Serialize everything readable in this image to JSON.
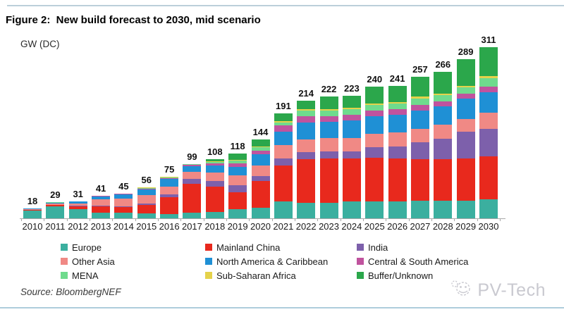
{
  "header": {
    "title": "Figure 2:  New build forecast to 2030, mid scenario"
  },
  "chart": {
    "unit_label": "GW (DC)"
  },
  "chart_data": {
    "type": "bar",
    "stacked": true,
    "title": "New build forecast to 2030, mid scenario",
    "ylabel": "GW (DC)",
    "xlabel": "",
    "grid": false,
    "legend_position": "bottom",
    "ylim": [
      0,
      320
    ],
    "categories": [
      2010,
      2011,
      2012,
      2013,
      2014,
      2015,
      2016,
      2017,
      2018,
      2019,
      2020,
      2021,
      2022,
      2023,
      2024,
      2025,
      2026,
      2027,
      2028,
      2029,
      2030
    ],
    "totals": [
      18,
      29,
      31,
      41,
      45,
      56,
      75,
      99,
      108,
      118,
      144,
      191,
      214,
      222,
      223,
      240,
      241,
      257,
      266,
      289,
      311
    ],
    "series": [
      {
        "key": "europe",
        "name": "Europe",
        "color": "#3BAF9F",
        "values": [
          14,
          21.5,
          17,
          10.5,
          10,
          9,
          7.5,
          9.5,
          12,
          16.5,
          19.5,
          30,
          28,
          28,
          30,
          30,
          31,
          32,
          32,
          32,
          34
        ]
      },
      {
        "key": "mainland-china",
        "name": "Mainland China",
        "color": "#E8291D",
        "values": [
          1,
          2.5,
          5,
          11.5,
          11,
          15.5,
          31,
          53,
          45,
          31,
          48,
          66,
          79,
          81,
          79,
          80,
          78,
          76,
          75,
          77,
          79
        ]
      },
      {
        "key": "india",
        "name": "India",
        "color": "#7D60AB",
        "values": [
          0.2,
          0.5,
          1,
          1,
          1,
          2.5,
          4.5,
          9.5,
          10.5,
          12,
          9,
          13,
          13,
          13,
          13,
          19,
          22,
          30,
          38,
          48,
          50
        ]
      },
      {
        "key": "other-asia",
        "name": "Other Asia",
        "color": "#F08985",
        "values": [
          1.3,
          2,
          3.5,
          11,
          14,
          15.5,
          15,
          12,
          15,
          18.5,
          19.5,
          23.5,
          23.5,
          23.5,
          23.5,
          24,
          25,
          25,
          25,
          24,
          29
        ]
      },
      {
        "key": "north-america-caribbean",
        "name": "North America & Caribbean",
        "color": "#1F90D5",
        "values": [
          1.2,
          2,
          4,
          6,
          7.5,
          10,
          14,
          11,
          13,
          15,
          20,
          25.5,
          30,
          30,
          32,
          32,
          32,
          33,
          33,
          36,
          37
        ]
      },
      {
        "key": "central-south-america",
        "name": "Central & South America",
        "color": "#C0539E",
        "values": [
          0.1,
          0.2,
          0.2,
          0.4,
          0.7,
          1.5,
          1.5,
          2.5,
          4.5,
          6.5,
          7,
          10.5,
          12.5,
          10.5,
          10.5,
          10.5,
          10,
          10,
          9,
          9,
          11
        ]
      },
      {
        "key": "mena",
        "name": "MENA",
        "color": "#6FDB8D",
        "values": [
          0.1,
          0.2,
          0.2,
          0.3,
          0.5,
          1,
          1,
          1,
          3,
          5.5,
          6,
          5.5,
          10.5,
          10.5,
          10.5,
          11,
          11,
          12,
          12,
          12,
          15
        ]
      },
      {
        "key": "sub-saharan-africa",
        "name": "Sub-Saharan Africa",
        "color": "#E5D24B",
        "values": [
          0.1,
          0.1,
          0.1,
          0.3,
          0.3,
          1,
          0.5,
          0.5,
          1,
          1.5,
          2,
          3,
          2,
          2.5,
          2.5,
          2.5,
          2.5,
          3,
          2,
          3,
          3
        ]
      },
      {
        "key": "buffer-unknown",
        "name": "Buffer/Unknown",
        "color": "#2BA74B",
        "values": [
          0,
          0,
          0,
          0,
          0,
          0,
          0,
          0,
          4,
          11.5,
          13,
          14,
          15.5,
          23,
          22,
          31,
          29.5,
          36,
          40,
          48,
          53
        ]
      }
    ]
  },
  "footer": {
    "source": "Source: BloombergNEF",
    "watermark": "PV-Tech"
  }
}
